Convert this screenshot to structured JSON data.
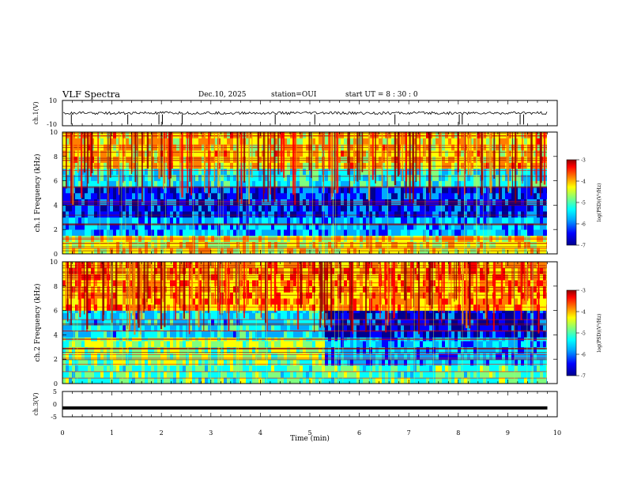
{
  "header": {
    "title": "VLF Spectra",
    "date": "Dec.10, 2025",
    "station": "station=OUI",
    "start": "start  UT =   8  : 30 : 0"
  },
  "colors": {
    "background": "#ffffff",
    "frame": "#000000",
    "colormap": [
      "#00008f",
      "#0000ff",
      "#00aaff",
      "#00ffff",
      "#7fff7f",
      "#ffff00",
      "#ff7f00",
      "#ff0000",
      "#8f0000"
    ]
  },
  "chart_data": [
    {
      "type": "line",
      "name": "ch1-waveform",
      "ylabel": "ch.1(V)",
      "ylim": [
        -10,
        10
      ],
      "yticks": [
        "10",
        "-10"
      ],
      "xlim": [
        0,
        10
      ],
      "baseline": 0,
      "spikes_min": [
        0.18,
        1.32,
        1.95,
        2.02,
        2.42,
        4.3,
        5.1,
        6.72,
        8.02,
        8.08,
        9.25,
        9.32
      ],
      "grid": false
    },
    {
      "type": "heatmap",
      "name": "ch1-spectrogram",
      "ylabel": "ch.1 Frequency (kHz)",
      "ylim": [
        0,
        10
      ],
      "yticks": [
        "0",
        "2",
        "4",
        "6",
        "8",
        "10"
      ],
      "xlim": [
        0,
        10
      ],
      "colorbar": {
        "label": "log(PSD)(V²/Hz)",
        "range": [
          -7,
          -3
        ],
        "ticks": [
          "-3",
          "-4",
          "-5",
          "-6",
          "-7"
        ]
      },
      "bands_khz": [
        [
          0,
          1.5,
          -4.6
        ],
        [
          1.5,
          3,
          -5.8
        ],
        [
          3,
          5.5,
          -6.3
        ],
        [
          5.5,
          7,
          -5.5
        ],
        [
          7,
          10,
          -4.4
        ]
      ]
    },
    {
      "type": "heatmap",
      "name": "ch2-spectrogram",
      "ylabel": "ch.2 Frequency (kHz)",
      "ylim": [
        0,
        10
      ],
      "yticks": [
        "0",
        "2",
        "4",
        "6",
        "8",
        "10"
      ],
      "xlim": [
        0,
        10
      ],
      "colorbar": {
        "label": "log(PSD)(V²/Hz)",
        "range": [
          -7,
          -3
        ],
        "ticks": [
          "-3",
          "-4",
          "-5",
          "-6",
          "-7"
        ]
      },
      "bands_khz": [
        [
          0,
          1.5,
          -5.2
        ],
        [
          1.5,
          3.8,
          -4.9
        ],
        [
          3.8,
          6,
          -5.6
        ],
        [
          6,
          10,
          -4.2
        ]
      ],
      "transition_min": 5.3
    },
    {
      "type": "line",
      "name": "ch3-waveform",
      "ylabel": "ch.3(V)",
      "ylim": [
        -5,
        5
      ],
      "yticks": [
        "5",
        "0",
        "-5"
      ],
      "xlim": [
        0,
        10
      ],
      "level": -1.5
    }
  ],
  "xaxis": {
    "label": "Time  (min)",
    "ticks": [
      "0",
      "1",
      "2",
      "3",
      "4",
      "5",
      "6",
      "7",
      "8",
      "9",
      "10"
    ]
  }
}
